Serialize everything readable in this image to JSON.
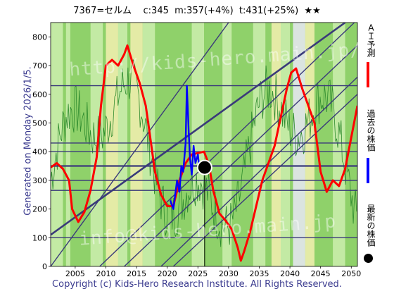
{
  "header": {
    "stock": "7367=セルム",
    "current": "c:345",
    "mid": "m:357(+4%)",
    "target": "t:431(+25%)",
    "stars": "★★"
  },
  "side_label": "Generated on Monday 2026/1/5.",
  "footer": "Copyright (c) Kids-Hero Research Institute. All Rights Reserved.",
  "watermarks": [
    "http://kids-hero.main.jp/",
    "info@kids-hero.main.jp"
  ],
  "legend": {
    "ai": {
      "label": "ＡＩ予測",
      "color": "#ff0000"
    },
    "past": {
      "label": "過去の株価",
      "color": "#0000ff"
    },
    "latest": {
      "label": "最新の株価",
      "color": "#000000"
    }
  },
  "colors": {
    "band_green": "#8fd16a",
    "band_light": "#cdeeae",
    "band_yellow": "#f3f0b0",
    "band_lavender": "#e9e8f5",
    "line_green": "#2e8b2e",
    "channel": "#3a3a7a"
  },
  "chart_data": {
    "type": "line",
    "xlim": [
      2001,
      2051
    ],
    "ylim": [
      0,
      850
    ],
    "xticks": [
      2005,
      2010,
      2015,
      2020,
      2025,
      2030,
      2035,
      2040,
      2045,
      2050
    ],
    "yticks": [
      0,
      100,
      200,
      300,
      400,
      500,
      600,
      700,
      800
    ],
    "hlines": [
      100,
      265,
      300,
      350,
      400,
      430,
      630
    ],
    "diagonals": [
      [
        [
          2001,
          0
        ],
        [
          2030,
          850
        ]
      ],
      [
        [
          2001,
          110
        ],
        [
          2049,
          850
        ]
      ],
      [
        [
          2009,
          0
        ],
        [
          2050.5,
          850
        ]
      ],
      [
        [
          2013,
          0
        ],
        [
          2051,
          770
        ]
      ],
      [
        [
          2019,
          0
        ],
        [
          2051,
          660
        ]
      ],
      [
        [
          2021,
          0
        ],
        [
          2051,
          600
        ]
      ]
    ],
    "latest_point": {
      "x": 2026.1,
      "y": 345
    },
    "series": [
      {
        "name": "ＡＩ予測",
        "color": "#ff0000",
        "x": [
          2001,
          2002,
          2003,
          2004,
          2004.5,
          2005.5,
          2006.5,
          2007.5,
          2008.5,
          2009.2,
          2010,
          2011,
          2012,
          2013,
          2013.5,
          2014.5,
          2015.5,
          2016.5,
          2017,
          2018,
          2019,
          2020,
          2021,
          2022,
          2023,
          2024,
          2025,
          2026,
          2026.8,
          2027.5,
          2028.5,
          2029.5,
          2030.5,
          2031.5,
          2032,
          2032.5,
          2033.5,
          2034.5,
          2035.5,
          2036.5,
          2037.5,
          2038.5,
          2039.5,
          2040.2,
          2041,
          2042,
          2043,
          2044,
          2045,
          2046,
          2047,
          2048,
          2049,
          2050,
          2051
        ],
        "y": [
          345,
          360,
          340,
          300,
          200,
          155,
          190,
          265,
          380,
          560,
          700,
          720,
          700,
          740,
          770,
          700,
          640,
          560,
          485,
          330,
          250,
          210,
          210,
          300,
          360,
          390,
          395,
          400,
          355,
          265,
          185,
          160,
          130,
          65,
          20,
          50,
          120,
          210,
          300,
          360,
          420,
          520,
          620,
          675,
          690,
          620,
          560,
          500,
          330,
          260,
          300,
          280,
          340,
          450,
          560
        ]
      },
      {
        "name": "過去の株価",
        "color": "#0000ff",
        "x": [
          2020.5,
          2021,
          2021.3,
          2021.6,
          2022,
          2022.3,
          2022.6,
          2023,
          2023.2,
          2023.5,
          2023.7,
          2024,
          2024.3,
          2024.6,
          2025,
          2025.3,
          2025.6,
          2026
        ],
        "y": [
          230,
          200,
          250,
          300,
          260,
          350,
          330,
          430,
          630,
          470,
          380,
          320,
          420,
          360,
          390,
          330,
          360,
          345
        ]
      }
    ]
  }
}
